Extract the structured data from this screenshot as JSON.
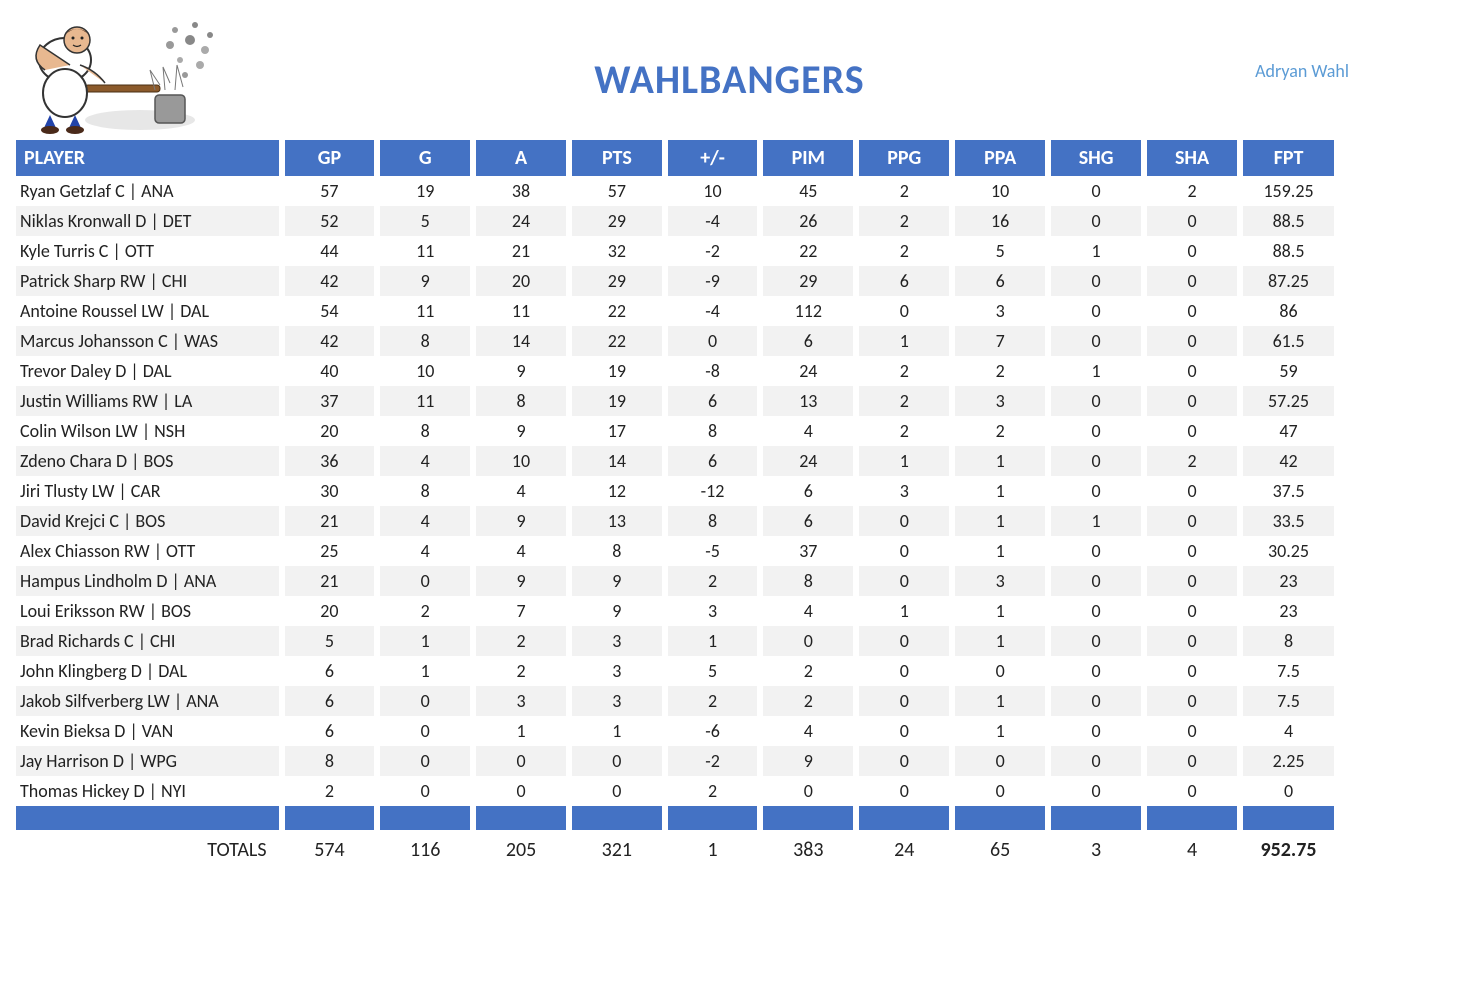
{
  "team": {
    "title": "WAHLBANGERS",
    "owner": "Adryan Wahl"
  },
  "table": {
    "columns": [
      "PLAYER",
      "GP",
      "G",
      "A",
      "PTS",
      "+/-",
      "PIM",
      "PPG",
      "PPA",
      "SHG",
      "SHA",
      "FPT"
    ],
    "rows": [
      {
        "player": "Ryan Getzlaf C | ANA",
        "gp": "57",
        "g": "19",
        "a": "38",
        "pts": "57",
        "pm": "10",
        "pim": "45",
        "ppg": "2",
        "ppa": "10",
        "shg": "0",
        "sha": "2",
        "fpt": "159.25"
      },
      {
        "player": "Niklas Kronwall D | DET",
        "gp": "52",
        "g": "5",
        "a": "24",
        "pts": "29",
        "pm": "-4",
        "pim": "26",
        "ppg": "2",
        "ppa": "16",
        "shg": "0",
        "sha": "0",
        "fpt": "88.5"
      },
      {
        "player": "Kyle Turris C | OTT",
        "gp": "44",
        "g": "11",
        "a": "21",
        "pts": "32",
        "pm": "-2",
        "pim": "22",
        "ppg": "2",
        "ppa": "5",
        "shg": "1",
        "sha": "0",
        "fpt": "88.5"
      },
      {
        "player": "Patrick Sharp RW | CHI",
        "gp": "42",
        "g": "9",
        "a": "20",
        "pts": "29",
        "pm": "-9",
        "pim": "29",
        "ppg": "6",
        "ppa": "6",
        "shg": "0",
        "sha": "0",
        "fpt": "87.25"
      },
      {
        "player": "Antoine Roussel LW | DAL",
        "gp": "54",
        "g": "11",
        "a": "11",
        "pts": "22",
        "pm": "-4",
        "pim": "112",
        "ppg": "0",
        "ppa": "3",
        "shg": "0",
        "sha": "0",
        "fpt": "86"
      },
      {
        "player": "Marcus Johansson C | WAS",
        "gp": "42",
        "g": "8",
        "a": "14",
        "pts": "22",
        "pm": "0",
        "pim": "6",
        "ppg": "1",
        "ppa": "7",
        "shg": "0",
        "sha": "0",
        "fpt": "61.5"
      },
      {
        "player": "Trevor Daley D | DAL",
        "gp": "40",
        "g": "10",
        "a": "9",
        "pts": "19",
        "pm": "-8",
        "pim": "24",
        "ppg": "2",
        "ppa": "2",
        "shg": "1",
        "sha": "0",
        "fpt": "59"
      },
      {
        "player": "Justin Williams RW | LA",
        "gp": "37",
        "g": "11",
        "a": "8",
        "pts": "19",
        "pm": "6",
        "pim": "13",
        "ppg": "2",
        "ppa": "3",
        "shg": "0",
        "sha": "0",
        "fpt": "57.25"
      },
      {
        "player": "Colin Wilson LW | NSH",
        "gp": "20",
        "g": "8",
        "a": "9",
        "pts": "17",
        "pm": "8",
        "pim": "4",
        "ppg": "2",
        "ppa": "2",
        "shg": "0",
        "sha": "0",
        "fpt": "47"
      },
      {
        "player": "Zdeno Chara D | BOS",
        "gp": "36",
        "g": "4",
        "a": "10",
        "pts": "14",
        "pm": "6",
        "pim": "24",
        "ppg": "1",
        "ppa": "1",
        "shg": "0",
        "sha": "2",
        "fpt": "42"
      },
      {
        "player": "Jiri Tlusty LW | CAR",
        "gp": "30",
        "g": "8",
        "a": "4",
        "pts": "12",
        "pm": "-12",
        "pim": "6",
        "ppg": "3",
        "ppa": "1",
        "shg": "0",
        "sha": "0",
        "fpt": "37.5"
      },
      {
        "player": "David Krejci C | BOS",
        "gp": "21",
        "g": "4",
        "a": "9",
        "pts": "13",
        "pm": "8",
        "pim": "6",
        "ppg": "0",
        "ppa": "1",
        "shg": "1",
        "sha": "0",
        "fpt": "33.5"
      },
      {
        "player": "Alex Chiasson RW | OTT",
        "gp": "25",
        "g": "4",
        "a": "4",
        "pts": "8",
        "pm": "-5",
        "pim": "37",
        "ppg": "0",
        "ppa": "1",
        "shg": "0",
        "sha": "0",
        "fpt": "30.25"
      },
      {
        "player": "Hampus Lindholm D | ANA",
        "gp": "21",
        "g": "0",
        "a": "9",
        "pts": "9",
        "pm": "2",
        "pim": "8",
        "ppg": "0",
        "ppa": "3",
        "shg": "0",
        "sha": "0",
        "fpt": "23"
      },
      {
        "player": "Loui Eriksson RW | BOS",
        "gp": "20",
        "g": "2",
        "a": "7",
        "pts": "9",
        "pm": "3",
        "pim": "4",
        "ppg": "1",
        "ppa": "1",
        "shg": "0",
        "sha": "0",
        "fpt": "23"
      },
      {
        "player": "Brad Richards C | CHI",
        "gp": "5",
        "g": "1",
        "a": "2",
        "pts": "3",
        "pm": "1",
        "pim": "0",
        "ppg": "0",
        "ppa": "1",
        "shg": "0",
        "sha": "0",
        "fpt": "8"
      },
      {
        "player": "John Klingberg D | DAL",
        "gp": "6",
        "g": "1",
        "a": "2",
        "pts": "3",
        "pm": "5",
        "pim": "2",
        "ppg": "0",
        "ppa": "0",
        "shg": "0",
        "sha": "0",
        "fpt": "7.5"
      },
      {
        "player": "Jakob Silfverberg LW | ANA",
        "gp": "6",
        "g": "0",
        "a": "3",
        "pts": "3",
        "pm": "2",
        "pim": "2",
        "ppg": "0",
        "ppa": "1",
        "shg": "0",
        "sha": "0",
        "fpt": "7.5"
      },
      {
        "player": "Kevin Bieksa D | VAN",
        "gp": "6",
        "g": "0",
        "a": "1",
        "pts": "1",
        "pm": "-6",
        "pim": "4",
        "ppg": "0",
        "ppa": "1",
        "shg": "0",
        "sha": "0",
        "fpt": "4"
      },
      {
        "player": "Jay Harrison D | WPG",
        "gp": "8",
        "g": "0",
        "a": "0",
        "pts": "0",
        "pm": "-2",
        "pim": "9",
        "ppg": "0",
        "ppa": "0",
        "shg": "0",
        "sha": "0",
        "fpt": "2.25"
      },
      {
        "player": "Thomas Hickey D | NYI",
        "gp": "2",
        "g": "0",
        "a": "0",
        "pts": "0",
        "pm": "2",
        "pim": "0",
        "ppg": "0",
        "ppa": "0",
        "shg": "0",
        "sha": "0",
        "fpt": "0"
      }
    ],
    "totals": {
      "label": "TOTALS",
      "gp": "574",
      "g": "116",
      "a": "205",
      "pts": "321",
      "pm": "1",
      "pim": "383",
      "ppg": "24",
      "ppa": "65",
      "shg": "3",
      "sha": "4",
      "fpt": "952.75"
    }
  },
  "colors": {
    "header_bg": "#4472c4",
    "header_text": "#ffffff",
    "title_color": "#4472c4",
    "owner_color": "#5b9bd5",
    "row_alt_bg": "#f2f2f2"
  }
}
